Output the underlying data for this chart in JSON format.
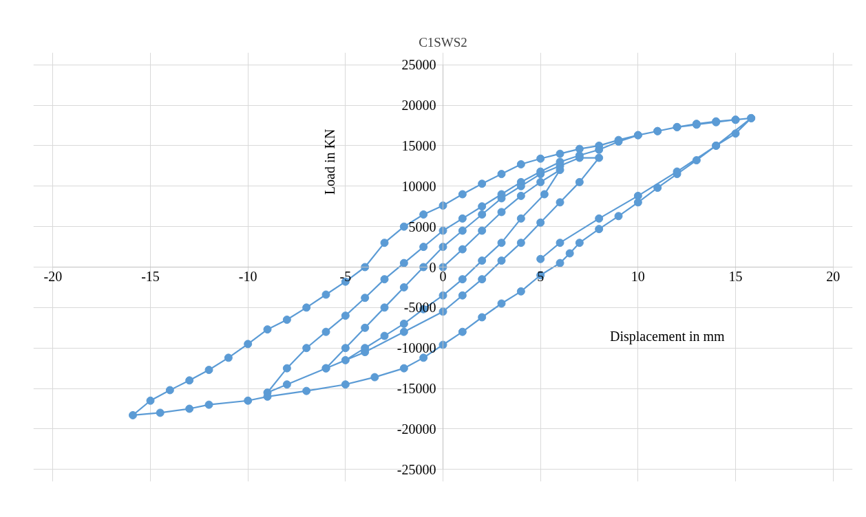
{
  "chart_data": {
    "type": "line",
    "title": "C1SWS2",
    "xlabel": "Displacement in mm",
    "ylabel": "Load in KN",
    "xlim": [
      -20,
      20
    ],
    "ylim": [
      -25000,
      25000
    ],
    "xticks": [
      -20,
      -15,
      -10,
      -5,
      0,
      5,
      10,
      15,
      20
    ],
    "yticks": [
      -25000,
      -20000,
      -15000,
      -10000,
      -5000,
      0,
      5000,
      10000,
      15000,
      20000,
      25000
    ],
    "grid": true,
    "marker": "circle",
    "line_style": "solid",
    "series": [
      {
        "color": "#5b9bd5",
        "x": [
          0,
          1,
          2,
          3,
          4,
          5,
          6,
          5.2,
          4,
          3,
          2,
          1,
          0,
          -1,
          -2,
          -3,
          -4,
          -5,
          -6,
          -5,
          -4,
          -3,
          -2,
          -1,
          0,
          1,
          2,
          3,
          4,
          5,
          6,
          7,
          8,
          7,
          6,
          5,
          4,
          3,
          2,
          1,
          0,
          -2,
          -4,
          -6,
          -8,
          -9,
          -8,
          -7,
          -6,
          -5,
          -4,
          -3,
          -2,
          -1,
          0,
          1,
          2,
          3,
          4,
          5,
          6,
          7,
          8,
          9,
          10,
          11,
          12,
          13,
          14,
          15,
          15.8,
          15,
          14,
          13,
          12,
          11,
          10,
          9,
          8,
          7,
          6.5,
          6,
          5,
          4,
          3,
          2,
          1,
          0,
          -1,
          -2,
          -3.5,
          -5,
          -7,
          -9,
          -10,
          -12,
          -13,
          -14.5,
          -15.9,
          -15,
          -14,
          -13,
          -12,
          -11,
          -10,
          -9,
          -8,
          -7,
          -6,
          -5,
          -4,
          -3,
          -2,
          -1,
          0,
          1,
          2,
          3,
          4,
          5,
          6,
          7,
          8,
          9,
          10,
          11,
          12,
          13,
          14,
          15,
          15.8,
          14,
          12,
          10,
          8,
          6,
          5
        ],
        "values": [
          0,
          2200,
          4500,
          6800,
          8800,
          10500,
          12000,
          9000,
          6000,
          3000,
          800,
          -1500,
          -3500,
          -5200,
          -7000,
          -8500,
          -10000,
          -11500,
          -12500,
          -10000,
          -7500,
          -5000,
          -2500,
          0,
          2500,
          4500,
          6500,
          8500,
          10000,
          11500,
          12500,
          13500,
          13500,
          10500,
          8000,
          5500,
          3000,
          800,
          -1500,
          -3500,
          -5500,
          -8000,
          -10500,
          -12500,
          -14500,
          -15500,
          -12500,
          -10000,
          -8000,
          -6000,
          -3800,
          -1500,
          500,
          2500,
          4500,
          6000,
          7500,
          9000,
          10500,
          11800,
          13000,
          13800,
          14500,
          15500,
          16300,
          16800,
          17300,
          17700,
          18000,
          18200,
          18400,
          16500,
          15000,
          13200,
          11500,
          9800,
          8000,
          6300,
          4700,
          3000,
          1700,
          500,
          -1000,
          -3000,
          -4500,
          -6200,
          -8000,
          -9600,
          -11200,
          -12500,
          -13600,
          -14500,
          -15300,
          -16000,
          -16500,
          -17000,
          -17500,
          -18000,
          -18300,
          -16500,
          -15200,
          -14000,
          -12700,
          -11200,
          -9500,
          -7700,
          -6500,
          -5000,
          -3400,
          -1800,
          0,
          3000,
          5000,
          6500,
          7600,
          9000,
          10300,
          11500,
          12700,
          13400,
          14000,
          14600,
          15000,
          15700,
          16300,
          16800,
          17300,
          17600,
          17900,
          18200,
          18400,
          15000,
          11800,
          8800,
          6000,
          3000,
          1000
        ]
      }
    ]
  }
}
